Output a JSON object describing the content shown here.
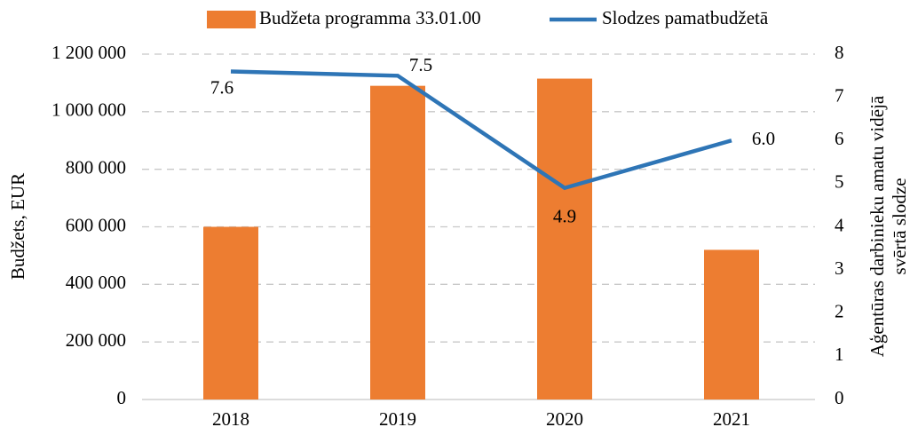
{
  "chart_data": {
    "type": "bar",
    "categories": [
      "2018",
      "2019",
      "2020",
      "2021"
    ],
    "series": [
      {
        "name": "Budžeta programma 33.01.00",
        "color": "#ed7d31",
        "values": [
          600000,
          1090000,
          1115000,
          520000
        ]
      },
      {
        "name": "Slodzes pamatbudžetā",
        "color": "#2e75b6",
        "type": "line",
        "axis": "y2",
        "values": [
          7.6,
          7.5,
          4.9,
          6.0
        ],
        "value_labels": [
          "7.6",
          "7.5",
          "4.9",
          "6.0"
        ]
      }
    ],
    "ylabel": "Budžets, EUR",
    "y2label": [
      "Aģentūras darbinieku amatu vidējā",
      "svērtā slodze"
    ],
    "ylim": [
      0,
      1200000
    ],
    "yticks": [
      0,
      {
        "value": 200000,
        "label": "200 000"
      },
      {
        "value": 400000,
        "label": "400 000"
      },
      {
        "value": 600000,
        "label": "600 000"
      },
      {
        "value": 800000,
        "label": "800 000"
      },
      {
        "value": 1000000,
        "label": "1 000 000"
      },
      {
        "value": 1200000,
        "label": "1 200 000"
      }
    ],
    "y2lim": [
      0,
      8
    ],
    "y2ticks": [
      0,
      1,
      2,
      3,
      4,
      5,
      6,
      7,
      8
    ],
    "grid": true,
    "legend": "top"
  }
}
